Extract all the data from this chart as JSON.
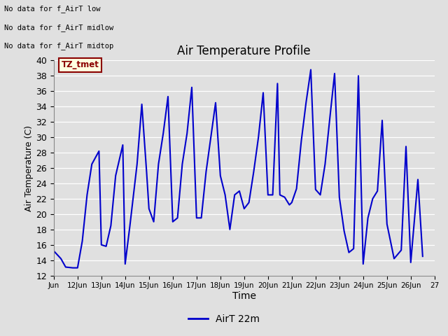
{
  "title": "Air Temperature Profile",
  "xlabel": "Time",
  "ylabel": "Air Temperature (C)",
  "ylim": [
    12,
    40
  ],
  "yticks": [
    12,
    14,
    16,
    18,
    20,
    22,
    24,
    26,
    28,
    30,
    32,
    34,
    36,
    38,
    40
  ],
  "line_color": "#0000cc",
  "line_width": 1.5,
  "bg_color": "#e0e0e0",
  "annotations_text": [
    "No data for f_AirT low",
    "No data for f_AirT midlow",
    "No data for f_AirT midtop"
  ],
  "legend_label": "AirT 22m",
  "tz_label": "TZ_tmet",
  "x_tick_labels": [
    "Jun",
    "12Jun",
    "13Jun",
    "14Jun",
    "15Jun",
    "16Jun",
    "17Jun",
    "18Jun",
    "19Jun",
    "20Jun",
    "21Jun",
    "22Jun",
    "23Jun",
    "24Jun",
    "25Jun",
    "26Jun",
    "27"
  ],
  "time_values": [
    11.0,
    11.3,
    11.5,
    11.8,
    12.0,
    12.2,
    12.4,
    12.6,
    12.9,
    13.0,
    13.2,
    13.4,
    13.6,
    13.9,
    14.0,
    14.2,
    14.5,
    14.7,
    14.9,
    15.0,
    15.2,
    15.4,
    15.6,
    15.8,
    16.0,
    16.2,
    16.4,
    16.6,
    16.8,
    17.0,
    17.2,
    17.4,
    17.6,
    17.8,
    18.0,
    18.2,
    18.4,
    18.6,
    18.8,
    19.0,
    19.2,
    19.4,
    19.6,
    19.8,
    20.0,
    20.2,
    20.4,
    20.5,
    20.7,
    20.9,
    21.0,
    21.2,
    21.4,
    21.6,
    21.8,
    22.0,
    22.2,
    22.4,
    22.6,
    22.8,
    23.0,
    23.2,
    23.4,
    23.6,
    23.8,
    24.0,
    24.2,
    24.4,
    24.6,
    24.8,
    25.0,
    25.3,
    25.6,
    25.8,
    26.0,
    26.3,
    26.5
  ],
  "temp_values": [
    15.2,
    14.2,
    13.1,
    13.0,
    13.0,
    16.5,
    22.5,
    26.5,
    28.2,
    16.0,
    15.8,
    18.5,
    25.0,
    29.0,
    13.5,
    18.5,
    26.5,
    34.3,
    25.5,
    20.7,
    19.0,
    26.5,
    30.5,
    35.3,
    19.0,
    19.5,
    26.5,
    30.5,
    36.5,
    19.5,
    19.5,
    25.5,
    30.0,
    34.5,
    25.0,
    22.5,
    18.0,
    22.5,
    23.0,
    20.7,
    21.5,
    25.5,
    30.0,
    35.8,
    22.5,
    22.5,
    37.0,
    22.5,
    22.2,
    21.2,
    21.5,
    23.3,
    29.5,
    34.5,
    38.8,
    23.2,
    22.5,
    26.5,
    32.5,
    38.3,
    22.2,
    17.8,
    15.0,
    15.5,
    38.0,
    13.5,
    19.5,
    22.0,
    23.0,
    32.2,
    18.7,
    14.2,
    15.3,
    28.8,
    13.7,
    24.5,
    14.5
  ]
}
